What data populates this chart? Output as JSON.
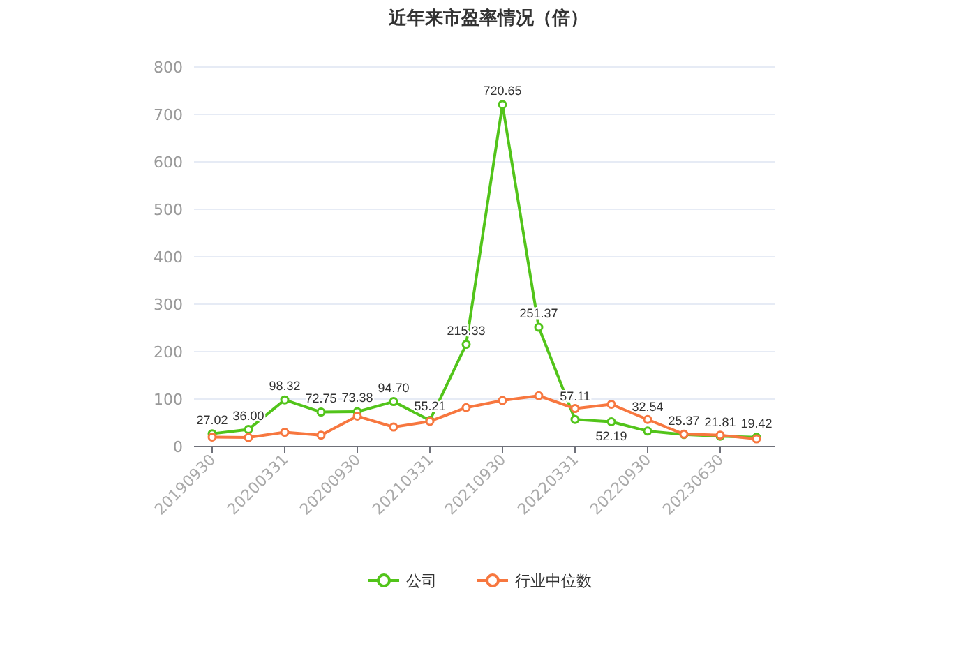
{
  "chart_data": {
    "type": "line",
    "title": "近年来市盈率情况（倍）",
    "categories": [
      "20190930",
      null,
      "20200331",
      null,
      "20200930",
      null,
      "20210331",
      null,
      "20210930",
      null,
      "20220331",
      null,
      "20220930",
      null,
      "20230630",
      null
    ],
    "series": [
      {
        "name": "公司",
        "color": "#52c41a",
        "values": [
          27.02,
          36.0,
          98.32,
          72.75,
          73.38,
          94.7,
          55.21,
          215.33,
          720.65,
          251.37,
          57.11,
          52.19,
          32.54,
          25.37,
          21.81,
          19.42
        ],
        "value_labels": [
          "27.02",
          "36.00",
          "98.32",
          "72.75",
          "73.38",
          "94.70",
          "55.21",
          "215.33",
          "720.65",
          "251.37",
          "57.11",
          "52.19",
          "32.54",
          "25.37",
          "21.81",
          "19.42"
        ]
      },
      {
        "name": "行业中位数",
        "color": "#f7773f",
        "values": [
          20,
          19,
          30,
          24,
          64,
          41,
          53,
          82,
          97,
          107,
          80,
          89,
          57,
          26,
          24,
          16
        ]
      }
    ],
    "ylim": [
      0,
      800
    ],
    "yticks": [
      0,
      100,
      200,
      300,
      400,
      500,
      600,
      700,
      800
    ],
    "grid": "y",
    "legend": "bottom",
    "marker": "circle",
    "line_style": "solid"
  }
}
